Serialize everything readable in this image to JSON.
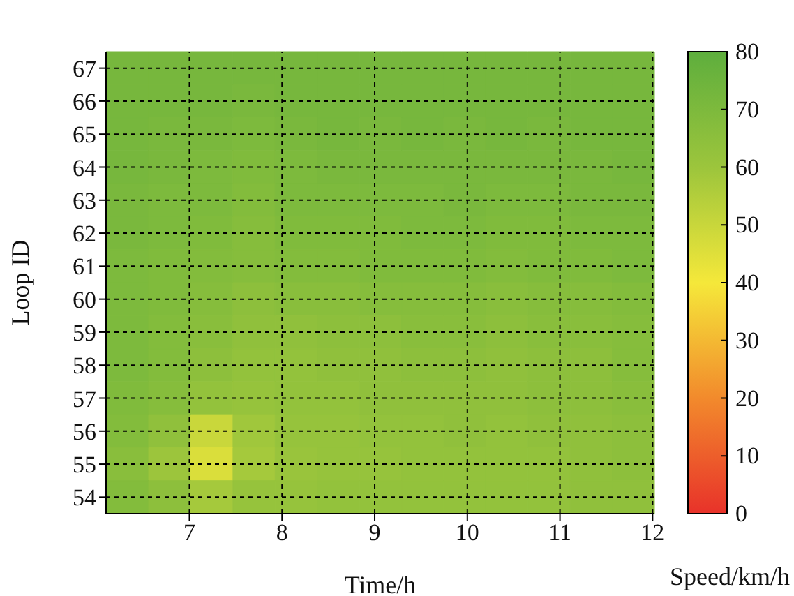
{
  "chart_data": {
    "type": "heatmap",
    "xlabel": "Time/h",
    "ylabel": "Loop ID",
    "clabel": "Speed/km/h",
    "x": [
      6.33,
      6.79,
      7.24,
      7.7,
      8.15,
      8.61,
      9.06,
      9.52,
      9.97,
      10.43,
      10.88,
      11.34,
      11.79
    ],
    "y_categories": [
      "67",
      "66",
      "65",
      "64",
      "63",
      "62",
      "61",
      "60",
      "59",
      "58",
      "57",
      "56",
      "55",
      "54"
    ],
    "cells": [
      [
        72,
        72,
        72,
        72,
        72,
        72,
        72,
        72,
        72,
        72,
        72,
        72,
        72
      ],
      [
        72,
        72,
        72,
        71,
        72,
        72,
        72,
        72,
        72,
        72,
        72,
        72,
        72
      ],
      [
        72,
        71,
        71,
        70,
        71,
        72,
        71,
        72,
        71,
        72,
        71,
        72,
        72
      ],
      [
        72,
        71,
        70,
        69,
        70,
        71,
        71,
        71,
        71,
        71,
        71,
        71,
        72
      ],
      [
        71,
        70,
        70,
        68,
        70,
        70,
        70,
        70,
        71,
        70,
        70,
        71,
        71
      ],
      [
        71,
        70,
        69,
        67,
        69,
        69,
        69,
        70,
        70,
        69,
        69,
        70,
        70
      ],
      [
        70,
        69,
        68,
        67,
        68,
        68,
        69,
        69,
        69,
        68,
        69,
        69,
        70
      ],
      [
        70,
        69,
        67,
        65,
        66,
        66,
        67,
        67,
        67,
        66,
        67,
        67,
        68
      ],
      [
        70,
        68,
        66,
        64,
        64,
        65,
        65,
        66,
        66,
        65,
        66,
        66,
        67
      ],
      [
        70,
        68,
        65,
        63,
        63,
        64,
        64,
        65,
        65,
        64,
        65,
        65,
        67
      ],
      [
        69,
        67,
        63,
        62,
        63,
        63,
        64,
        64,
        64,
        64,
        65,
        65,
        66
      ],
      [
        68,
        64,
        50,
        59,
        62,
        62,
        63,
        63,
        64,
        63,
        64,
        64,
        65
      ],
      [
        66,
        60,
        46,
        58,
        61,
        62,
        62,
        63,
        63,
        63,
        63,
        64,
        65
      ],
      [
        68,
        65,
        58,
        62,
        62,
        63,
        63,
        63,
        63,
        63,
        63,
        64,
        64
      ]
    ],
    "xlim": [
      6.1,
      12.02
    ],
    "xticks": [
      7,
      8,
      9,
      10,
      11,
      12
    ],
    "clim": [
      0,
      80
    ],
    "cticks": [
      0,
      10,
      20,
      30,
      40,
      50,
      60,
      70,
      80
    ],
    "grid": true
  }
}
